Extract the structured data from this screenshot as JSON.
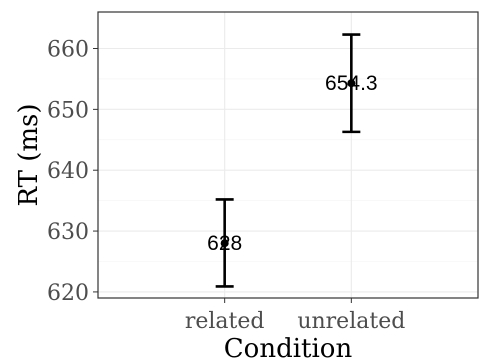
{
  "chart_data": {
    "type": "scatter",
    "title": "",
    "xlabel": "Condition",
    "ylabel": "RT (ms)",
    "categories": [
      "related",
      "unrelated"
    ],
    "series": [
      {
        "values": [
          628.0,
          654.3
        ],
        "lower": [
          620.9,
          646.3
        ],
        "upper": [
          635.2,
          662.3
        ],
        "labels": [
          "628",
          "654.3"
        ]
      }
    ],
    "ylim": [
      619,
      666
    ],
    "y_ticks": [
      620,
      630,
      640,
      650,
      660
    ],
    "y_tick_labels": [
      "620",
      "630",
      "640",
      "650",
      "660"
    ],
    "grid": true,
    "legend": "none",
    "colors": {
      "point": "#000000",
      "errorbar": "#000000",
      "grid": "#ebebeb",
      "border": "#333333"
    }
  }
}
